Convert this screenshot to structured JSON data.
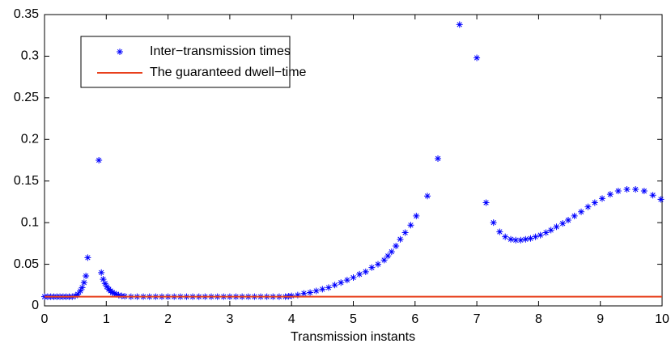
{
  "chart_data": {
    "type": "scatter",
    "xlabel": "Transmission instants",
    "xlim": [
      0,
      10
    ],
    "xticks": [
      0,
      1,
      2,
      3,
      4,
      5,
      6,
      7,
      8,
      9,
      10
    ],
    "ylim": [
      0,
      0.35
    ],
    "yticks": [
      0,
      0.05,
      0.1,
      0.15,
      0.2,
      0.25,
      0.3,
      0.35
    ],
    "legend": "upper left",
    "series": [
      {
        "name": "Inter−transmission times",
        "color": "#0000ff",
        "marker": "asterisk",
        "x": [
          0,
          0.05,
          0.1,
          0.15,
          0.2,
          0.25,
          0.3,
          0.35,
          0.4,
          0.45,
          0.5,
          0.54,
          0.58,
          0.61,
          0.64,
          0.67,
          0.7,
          0.88,
          0.92,
          0.95,
          0.98,
          1.01,
          1.04,
          1.07,
          1.1,
          1.13,
          1.16,
          1.2,
          1.25,
          1.3,
          1.4,
          1.5,
          1.6,
          1.7,
          1.8,
          1.9,
          2.0,
          2.1,
          2.2,
          2.3,
          2.4,
          2.5,
          2.6,
          2.7,
          2.8,
          2.9,
          3.0,
          3.1,
          3.2,
          3.3,
          3.4,
          3.5,
          3.6,
          3.7,
          3.8,
          3.9,
          3.95,
          4.0,
          4.1,
          4.2,
          4.3,
          4.4,
          4.5,
          4.6,
          4.7,
          4.8,
          4.9,
          5.0,
          5.1,
          5.2,
          5.3,
          5.4,
          5.5,
          5.56,
          5.62,
          5.69,
          5.76,
          5.84,
          5.93,
          6.02,
          6.2,
          6.37,
          6.72,
          7.0,
          7.15,
          7.27,
          7.37,
          7.46,
          7.55,
          7.63,
          7.71,
          7.79,
          7.87,
          7.95,
          8.03,
          8.12,
          8.2,
          8.29,
          8.39,
          8.48,
          8.58,
          8.69,
          8.8,
          8.91,
          9.03,
          9.16,
          9.29,
          9.43,
          9.57,
          9.71,
          9.85,
          9.98
        ],
        "values": [
          0.011,
          0.011,
          0.011,
          0.011,
          0.011,
          0.011,
          0.011,
          0.011,
          0.011,
          0.011,
          0.012,
          0.014,
          0.018,
          0.022,
          0.028,
          0.036,
          0.058,
          0.175,
          0.04,
          0.032,
          0.027,
          0.023,
          0.02,
          0.018,
          0.016,
          0.015,
          0.014,
          0.013,
          0.012,
          0.0115,
          0.011,
          0.011,
          0.011,
          0.011,
          0.011,
          0.011,
          0.011,
          0.011,
          0.011,
          0.011,
          0.011,
          0.011,
          0.011,
          0.011,
          0.011,
          0.011,
          0.011,
          0.011,
          0.011,
          0.011,
          0.011,
          0.011,
          0.011,
          0.011,
          0.011,
          0.011,
          0.0115,
          0.012,
          0.013,
          0.015,
          0.016,
          0.018,
          0.02,
          0.022,
          0.025,
          0.028,
          0.031,
          0.034,
          0.038,
          0.041,
          0.046,
          0.05,
          0.055,
          0.06,
          0.065,
          0.072,
          0.08,
          0.088,
          0.097,
          0.108,
          0.132,
          0.177,
          0.338,
          0.298,
          0.124,
          0.1,
          0.089,
          0.083,
          0.08,
          0.079,
          0.079,
          0.08,
          0.081,
          0.083,
          0.085,
          0.088,
          0.091,
          0.095,
          0.099,
          0.103,
          0.108,
          0.113,
          0.119,
          0.124,
          0.129,
          0.134,
          0.138,
          0.14,
          0.14,
          0.138,
          0.133,
          0.128
        ]
      },
      {
        "name": "The guaranteed dwell−time",
        "color": "#e8401c",
        "marker": "line",
        "x": [
          0,
          10
        ],
        "values": [
          0.011,
          0.011
        ]
      }
    ]
  }
}
